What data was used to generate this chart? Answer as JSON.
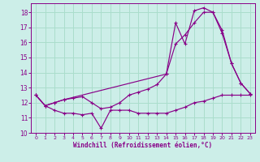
{
  "xlabel": "Windchill (Refroidissement éolien,°C)",
  "bg_color": "#cceee8",
  "grid_color": "#aaddcc",
  "line_color": "#880088",
  "xlim": [
    -0.5,
    23.5
  ],
  "ylim": [
    10.0,
    18.6
  ],
  "yticks": [
    10,
    11,
    12,
    13,
    14,
    15,
    16,
    17,
    18
  ],
  "xticks": [
    0,
    1,
    2,
    3,
    4,
    5,
    6,
    7,
    8,
    9,
    10,
    11,
    12,
    13,
    14,
    15,
    16,
    17,
    18,
    19,
    20,
    21,
    22,
    23
  ],
  "line1_x": [
    0,
    1,
    2,
    3,
    4,
    5,
    6,
    7,
    8,
    9,
    10,
    11,
    12,
    13,
    14,
    15,
    16,
    17,
    18,
    19,
    20,
    21,
    22,
    23
  ],
  "line1_y": [
    12.5,
    11.8,
    11.5,
    11.3,
    11.3,
    11.2,
    11.3,
    10.3,
    11.5,
    11.5,
    11.5,
    11.3,
    11.3,
    11.3,
    11.3,
    11.5,
    11.7,
    12.0,
    12.1,
    12.3,
    12.5,
    12.5,
    12.5,
    12.5
  ],
  "line2_x": [
    0,
    1,
    2,
    3,
    4,
    5,
    6,
    7,
    8,
    9,
    10,
    11,
    12,
    13,
    14,
    15,
    16,
    17,
    18,
    19,
    20,
    21,
    22,
    23
  ],
  "line2_y": [
    12.5,
    11.8,
    12.0,
    12.2,
    12.3,
    12.4,
    12.0,
    11.6,
    11.7,
    12.0,
    12.5,
    12.7,
    12.9,
    13.2,
    13.9,
    15.9,
    16.5,
    17.3,
    18.0,
    18.0,
    16.6,
    14.6,
    13.3,
    12.6
  ],
  "line3_x": [
    0,
    1,
    2,
    3,
    14,
    15,
    16,
    17,
    18,
    19,
    20,
    21,
    22,
    23
  ],
  "line3_y": [
    12.5,
    11.8,
    12.0,
    12.2,
    13.9,
    17.3,
    15.9,
    18.1,
    18.3,
    18.0,
    16.8,
    14.6,
    13.3,
    12.6
  ]
}
